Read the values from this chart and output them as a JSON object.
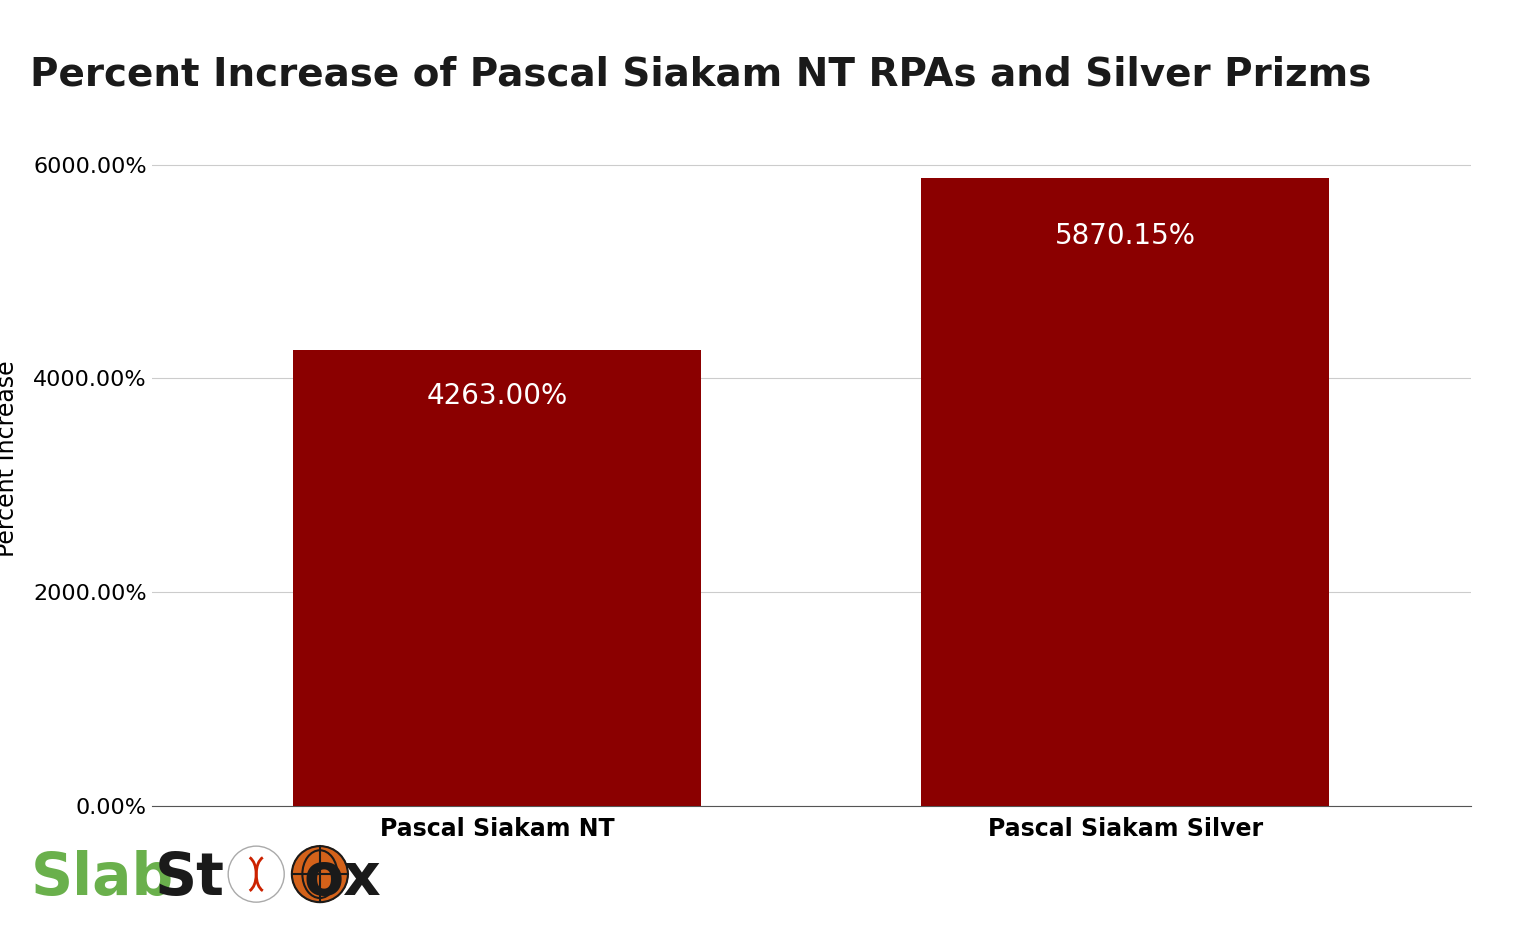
{
  "title": "Percent Increase of Pascal Siakam NT RPAs and Silver Prizms",
  "categories": [
    "Pascal Siakam NT",
    "Pascal Siakam Silver"
  ],
  "values": [
    4263.0,
    5870.15
  ],
  "bar_labels": [
    "4263.00%",
    "5870.15%"
  ],
  "bar_color": "#8B0000",
  "ylabel": "Percent Increase",
  "ylim": [
    0,
    6500
  ],
  "yticks": [
    0,
    2000,
    4000,
    6000
  ],
  "ytick_labels": [
    "0.00%",
    "2000.00%",
    "4000.00%",
    "6000.00%"
  ],
  "title_fontsize": 28,
  "label_fontsize": 17,
  "tick_fontsize": 16,
  "bar_label_fontsize": 20,
  "bar_label_color": "white",
  "background_color": "#ffffff",
  "grid_color": "#cccccc",
  "slab_color": "#6ab04c",
  "stox_color": "#1a1a1a",
  "bar_width": 0.65,
  "x_positions": [
    0,
    1
  ],
  "xlim": [
    -0.55,
    1.55
  ]
}
